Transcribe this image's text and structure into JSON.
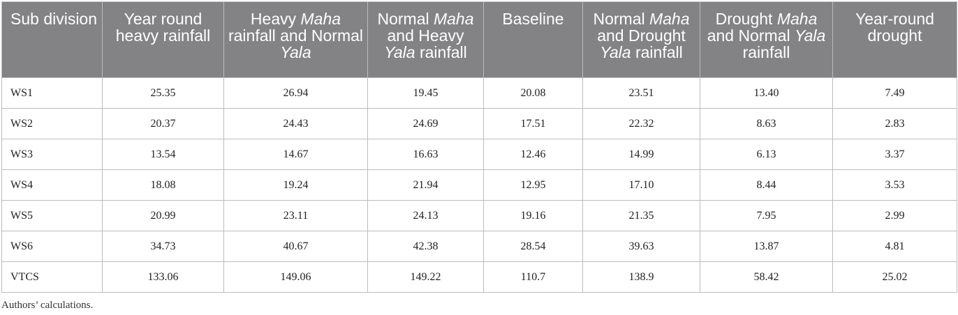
{
  "table": {
    "headers": [
      {
        "parts": [
          {
            "t": "Sub division",
            "i": false
          }
        ]
      },
      {
        "parts": [
          {
            "t": "Year round heavy rainfall",
            "i": false
          }
        ]
      },
      {
        "parts": [
          {
            "t": "Heavy ",
            "i": false
          },
          {
            "t": "Maha",
            "i": true
          },
          {
            "t": " rainfall and Normal ",
            "i": false
          },
          {
            "t": "Yala",
            "i": true
          }
        ]
      },
      {
        "parts": [
          {
            "t": "Normal ",
            "i": false
          },
          {
            "t": "Maha",
            "i": true
          },
          {
            "t": " and Heavy ",
            "i": false
          },
          {
            "t": "Yala",
            "i": true
          },
          {
            "t": " rainfall",
            "i": false
          }
        ]
      },
      {
        "parts": [
          {
            "t": "Baseline",
            "i": false
          }
        ]
      },
      {
        "parts": [
          {
            "t": "Normal ",
            "i": false
          },
          {
            "t": "Maha",
            "i": true
          },
          {
            "t": " and Drought ",
            "i": false
          },
          {
            "t": "Yala",
            "i": true
          },
          {
            "t": " rainfall",
            "i": false
          }
        ]
      },
      {
        "parts": [
          {
            "t": "Drought ",
            "i": false
          },
          {
            "t": "Maha",
            "i": true
          },
          {
            "t": " and Normal ",
            "i": false
          },
          {
            "t": "Yala",
            "i": true
          },
          {
            "t": " rainfall",
            "i": false
          }
        ]
      },
      {
        "parts": [
          {
            "t": "Year-round drought",
            "i": false
          }
        ]
      }
    ],
    "rows": [
      [
        "WS1",
        "25.35",
        "26.94",
        "19.45",
        "20.08",
        "23.51",
        "13.40",
        "7.49"
      ],
      [
        "WS2",
        "20.37",
        "24.43",
        "24.69",
        "17.51",
        "22.32",
        "8.63",
        "2.83"
      ],
      [
        "WS3",
        "13.54",
        "14.67",
        "16.63",
        "12.46",
        "14.99",
        "6.13",
        "3.37"
      ],
      [
        "WS4",
        "18.08",
        "19.24",
        "21.94",
        "12.95",
        "17.10",
        "8.44",
        "3.53"
      ],
      [
        "WS5",
        "20.99",
        "23.11",
        "24.13",
        "19.16",
        "21.35",
        "7.95",
        "2.99"
      ],
      [
        "WS6",
        "34.73",
        "40.67",
        "42.38",
        "28.54",
        "39.63",
        "13.87",
        "4.81"
      ],
      [
        "VTCS",
        "133.06",
        "149.06",
        "149.22",
        "110.7",
        "138.9",
        "58.42",
        "25.02"
      ]
    ]
  },
  "footnote": "Authors’ calculations.",
  "colors": {
    "header_bg": "#838385",
    "header_text": "#ffffff",
    "border": "#bcbcbc"
  }
}
